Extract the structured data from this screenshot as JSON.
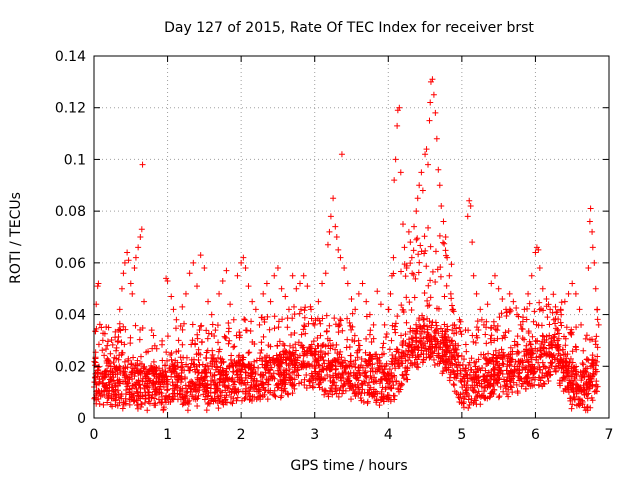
{
  "chart_data": {
    "type": "scatter",
    "title": "Day 127 of 2015, Rate Of TEC Index for receiver brst",
    "xlabel": "GPS time / hours",
    "ylabel": "ROTI / TECUs",
    "xlim": [
      0,
      7
    ],
    "ylim": [
      0,
      0.14
    ],
    "xticks": [
      0,
      1,
      2,
      3,
      4,
      5,
      6,
      7
    ],
    "xtick_labels": [
      "0",
      "1",
      "2",
      "3",
      "4",
      "5",
      "6",
      "7"
    ],
    "yticks": [
      0,
      0.02,
      0.04,
      0.06,
      0.08,
      0.1,
      0.12,
      0.14
    ],
    "ytick_labels": [
      "0",
      "0.02",
      "0.04",
      "0.06",
      "0.08",
      "0.1",
      "0.12",
      "0.14"
    ],
    "grid": true,
    "legend": "none",
    "marker": "+",
    "color": "#ff0000",
    "series": [
      {
        "points": [
          [
            0.0,
            0.012
          ],
          [
            0.02,
            0.023
          ],
          [
            0.03,
            0.044
          ],
          [
            0.05,
            0.051
          ],
          [
            0.06,
            0.052
          ],
          [
            0.08,
            0.014
          ],
          [
            0.1,
            0.035
          ],
          [
            0.12,
            0.03
          ],
          [
            0.15,
            0.018
          ],
          [
            0.18,
            0.028
          ],
          [
            0.2,
            0.022
          ],
          [
            0.23,
            0.015
          ],
          [
            0.25,
            0.012
          ],
          [
            0.28,
            0.02
          ],
          [
            0.3,
            0.026
          ],
          [
            0.33,
            0.034
          ],
          [
            0.35,
            0.042
          ],
          [
            0.38,
            0.05
          ],
          [
            0.4,
            0.056
          ],
          [
            0.42,
            0.06
          ],
          [
            0.45,
            0.064
          ],
          [
            0.47,
            0.061
          ],
          [
            0.5,
            0.052
          ],
          [
            0.52,
            0.048
          ],
          [
            0.55,
            0.058
          ],
          [
            0.57,
            0.062
          ],
          [
            0.6,
            0.066
          ],
          [
            0.63,
            0.07
          ],
          [
            0.65,
            0.073
          ],
          [
            0.66,
            0.098
          ],
          [
            0.68,
            0.045
          ],
          [
            0.7,
            0.016
          ],
          [
            0.75,
            0.012
          ],
          [
            0.8,
            0.014
          ],
          [
            0.85,
            0.011
          ],
          [
            0.9,
            0.013
          ],
          [
            0.95,
            0.012
          ],
          [
            0.98,
            0.054
          ],
          [
            1.0,
            0.053
          ],
          [
            1.05,
            0.047
          ],
          [
            1.08,
            0.042
          ],
          [
            1.12,
            0.038
          ],
          [
            1.15,
            0.03
          ],
          [
            1.2,
            0.043
          ],
          [
            1.25,
            0.048
          ],
          [
            1.3,
            0.056
          ],
          [
            1.35,
            0.06
          ],
          [
            1.4,
            0.051
          ],
          [
            1.45,
            0.063
          ],
          [
            1.5,
            0.058
          ],
          [
            1.55,
            0.045
          ],
          [
            1.6,
            0.04
          ],
          [
            1.65,
            0.034
          ],
          [
            1.7,
            0.048
          ],
          [
            1.75,
            0.053
          ],
          [
            1.8,
            0.057
          ],
          [
            1.85,
            0.044
          ],
          [
            1.9,
            0.038
          ],
          [
            1.95,
            0.055
          ],
          [
            2.0,
            0.06
          ],
          [
            2.03,
            0.062
          ],
          [
            2.06,
            0.058
          ],
          [
            2.1,
            0.051
          ],
          [
            2.15,
            0.045
          ],
          [
            2.2,
            0.042
          ],
          [
            2.25,
            0.036
          ],
          [
            2.3,
            0.048
          ],
          [
            2.35,
            0.052
          ],
          [
            2.4,
            0.045
          ],
          [
            2.45,
            0.055
          ],
          [
            2.5,
            0.058
          ],
          [
            2.55,
            0.05
          ],
          [
            2.6,
            0.047
          ],
          [
            2.65,
            0.042
          ],
          [
            2.7,
            0.055
          ],
          [
            2.75,
            0.05
          ],
          [
            2.8,
            0.052
          ],
          [
            2.85,
            0.055
          ],
          [
            2.9,
            0.051
          ],
          [
            2.95,
            0.042
          ],
          [
            3.0,
            0.036
          ],
          [
            3.05,
            0.045
          ],
          [
            3.1,
            0.052
          ],
          [
            3.15,
            0.056
          ],
          [
            3.18,
            0.067
          ],
          [
            3.2,
            0.072
          ],
          [
            3.22,
            0.078
          ],
          [
            3.25,
            0.085
          ],
          [
            3.28,
            0.074
          ],
          [
            3.3,
            0.07
          ],
          [
            3.32,
            0.065
          ],
          [
            3.35,
            0.062
          ],
          [
            3.37,
            0.102
          ],
          [
            3.4,
            0.058
          ],
          [
            3.45,
            0.052
          ],
          [
            3.5,
            0.046
          ],
          [
            3.55,
            0.042
          ],
          [
            3.6,
            0.048
          ],
          [
            3.65,
            0.052
          ],
          [
            3.7,
            0.045
          ],
          [
            3.75,
            0.04
          ],
          [
            3.8,
            0.036
          ],
          [
            3.85,
            0.049
          ],
          [
            3.9,
            0.044
          ],
          [
            3.95,
            0.036
          ],
          [
            4.0,
            0.042
          ],
          [
            4.03,
            0.048
          ],
          [
            4.05,
            0.055
          ],
          [
            4.07,
            0.062
          ],
          [
            4.08,
            0.092
          ],
          [
            4.1,
            0.1
          ],
          [
            4.12,
            0.113
          ],
          [
            4.13,
            0.119
          ],
          [
            4.15,
            0.12
          ],
          [
            4.17,
            0.095
          ],
          [
            4.2,
            0.075
          ],
          [
            4.22,
            0.066
          ],
          [
            4.25,
            0.058
          ],
          [
            4.28,
            0.072
          ],
          [
            4.3,
            0.068
          ],
          [
            4.32,
            0.062
          ],
          [
            4.35,
            0.074
          ],
          [
            4.38,
            0.08
          ],
          [
            4.4,
            0.085
          ],
          [
            4.42,
            0.09
          ],
          [
            4.45,
            0.095
          ],
          [
            4.47,
            0.088
          ],
          [
            4.5,
            0.102
          ],
          [
            4.52,
            0.104
          ],
          [
            4.54,
            0.098
          ],
          [
            4.56,
            0.115
          ],
          [
            4.57,
            0.122
          ],
          [
            4.58,
            0.13
          ],
          [
            4.6,
            0.131
          ],
          [
            4.62,
            0.125
          ],
          [
            4.64,
            0.118
          ],
          [
            4.66,
            0.108
          ],
          [
            4.68,
            0.096
          ],
          [
            4.7,
            0.09
          ],
          [
            4.72,
            0.082
          ],
          [
            4.75,
            0.076
          ],
          [
            4.78,
            0.07
          ],
          [
            4.8,
            0.062
          ],
          [
            4.83,
            0.055
          ],
          [
            4.85,
            0.048
          ],
          [
            4.88,
            0.042
          ],
          [
            4.9,
            0.036
          ],
          [
            4.95,
            0.028
          ],
          [
            5.0,
            0.024
          ],
          [
            5.05,
            0.034
          ],
          [
            5.08,
            0.078
          ],
          [
            5.1,
            0.084
          ],
          [
            5.12,
            0.082
          ],
          [
            5.14,
            0.068
          ],
          [
            5.16,
            0.055
          ],
          [
            5.2,
            0.048
          ],
          [
            5.25,
            0.042
          ],
          [
            5.3,
            0.036
          ],
          [
            5.35,
            0.044
          ],
          [
            5.4,
            0.052
          ],
          [
            5.45,
            0.055
          ],
          [
            5.5,
            0.05
          ],
          [
            5.55,
            0.046
          ],
          [
            5.6,
            0.042
          ],
          [
            5.65,
            0.048
          ],
          [
            5.7,
            0.045
          ],
          [
            5.75,
            0.04
          ],
          [
            5.8,
            0.036
          ],
          [
            5.85,
            0.042
          ],
          [
            5.9,
            0.048
          ],
          [
            5.95,
            0.055
          ],
          [
            6.0,
            0.064
          ],
          [
            6.02,
            0.066
          ],
          [
            6.04,
            0.065
          ],
          [
            6.06,
            0.058
          ],
          [
            6.1,
            0.05
          ],
          [
            6.15,
            0.046
          ],
          [
            6.2,
            0.042
          ],
          [
            6.25,
            0.038
          ],
          [
            6.3,
            0.034
          ],
          [
            6.35,
            0.04
          ],
          [
            6.4,
            0.045
          ],
          [
            6.45,
            0.048
          ],
          [
            6.5,
            0.052
          ],
          [
            6.55,
            0.048
          ],
          [
            6.6,
            0.042
          ],
          [
            6.62,
            0.036
          ],
          [
            6.65,
            0.026
          ],
          [
            6.68,
            0.018
          ],
          [
            6.7,
            0.032
          ],
          [
            6.72,
            0.058
          ],
          [
            6.74,
            0.076
          ],
          [
            6.75,
            0.081
          ],
          [
            6.77,
            0.072
          ],
          [
            6.78,
            0.066
          ],
          [
            6.8,
            0.06
          ],
          [
            6.82,
            0.05
          ],
          [
            6.84,
            0.042
          ],
          [
            6.86,
            0.036
          ]
        ],
        "dense_band": {
          "x_range": [
            0,
            6.85
          ],
          "baseline": [
            [
              0.0,
              0.013
            ],
            [
              0.5,
              0.012
            ],
            [
              1.0,
              0.011
            ],
            [
              1.5,
              0.012
            ],
            [
              2.0,
              0.013
            ],
            [
              2.5,
              0.016
            ],
            [
              2.8,
              0.02
            ],
            [
              3.0,
              0.018
            ],
            [
              3.5,
              0.016
            ],
            [
              3.8,
              0.014
            ],
            [
              4.0,
              0.012
            ],
            [
              4.2,
              0.022
            ],
            [
              4.5,
              0.03
            ],
            [
              4.8,
              0.024
            ],
            [
              5.0,
              0.012
            ],
            [
              5.5,
              0.016
            ],
            [
              6.0,
              0.02
            ],
            [
              6.3,
              0.024
            ],
            [
              6.5,
              0.012
            ],
            [
              6.7,
              0.008
            ],
            [
              6.85,
              0.018
            ]
          ],
          "spread": 0.012
        }
      }
    ]
  }
}
